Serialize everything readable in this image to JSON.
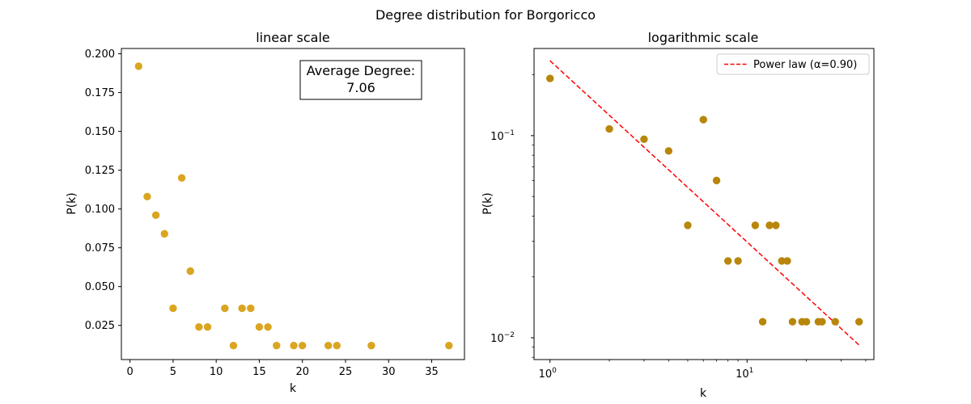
{
  "figure": {
    "suptitle": "Degree distribution for Borgoricco"
  },
  "chart_data": [
    {
      "type": "scatter",
      "title": "linear scale",
      "xlabel": "k",
      "ylabel": "P(k)",
      "xlim": [
        -1,
        38.8
      ],
      "ylim": [
        0.003,
        0.2034
      ],
      "xticks": [
        0,
        5,
        10,
        15,
        20,
        25,
        30,
        35
      ],
      "yticks": [
        0.025,
        0.05,
        0.075,
        0.1,
        0.125,
        0.15,
        0.175,
        0.2
      ],
      "ytick_labels": [
        "0.025",
        "0.050",
        "0.075",
        "0.100",
        "0.125",
        "0.150",
        "0.175",
        "0.200"
      ],
      "marker_color": "#DAA520",
      "x": [
        1,
        2,
        3,
        4,
        5,
        6,
        7,
        8,
        9,
        11,
        12,
        13,
        14,
        15,
        16,
        17,
        19,
        20,
        23,
        24,
        28,
        37
      ],
      "y": [
        0.192,
        0.108,
        0.096,
        0.084,
        0.036,
        0.12,
        0.06,
        0.024,
        0.024,
        0.036,
        0.012,
        0.036,
        0.036,
        0.024,
        0.024,
        0.012,
        0.012,
        0.012,
        0.012,
        0.012,
        0.012,
        0.012
      ],
      "annotation": {
        "line1": "Average Degree:",
        "line2": "7.06",
        "placement": "top-right"
      },
      "grid": false
    },
    {
      "type": "scatter",
      "title": "logarithmic scale",
      "xlabel": "k",
      "ylabel": "P(k)",
      "xscale": "log",
      "yscale": "log",
      "xlim": [
        0.83,
        44
      ],
      "ylim": [
        0.0078,
        0.27
      ],
      "xticks": [
        {
          "base": "10",
          "exp": "0",
          "value": 1
        },
        {
          "base": "10",
          "exp": "1",
          "value": 10
        }
      ],
      "yticks": [
        {
          "base": "10",
          "exp": "−2",
          "value": 0.01
        },
        {
          "base": "10",
          "exp": "−1",
          "value": 0.1
        }
      ],
      "marker_color": "#B8860B",
      "x": [
        1,
        2,
        3,
        4,
        5,
        6,
        7,
        8,
        9,
        11,
        12,
        13,
        14,
        15,
        16,
        17,
        19,
        20,
        23,
        24,
        28,
        37
      ],
      "y": [
        0.192,
        0.108,
        0.096,
        0.084,
        0.036,
        0.12,
        0.06,
        0.024,
        0.024,
        0.036,
        0.012,
        0.036,
        0.036,
        0.024,
        0.024,
        0.012,
        0.012,
        0.012,
        0.012,
        0.012,
        0.012,
        0.012
      ],
      "fit_line": {
        "name": "Power law (α=0.90)",
        "color": "#FF0000",
        "style": "dashed",
        "x": [
          1,
          37
        ],
        "y": [
          0.235,
          0.0092
        ]
      },
      "legend": {
        "placement": "top-right"
      },
      "grid": false
    }
  ]
}
